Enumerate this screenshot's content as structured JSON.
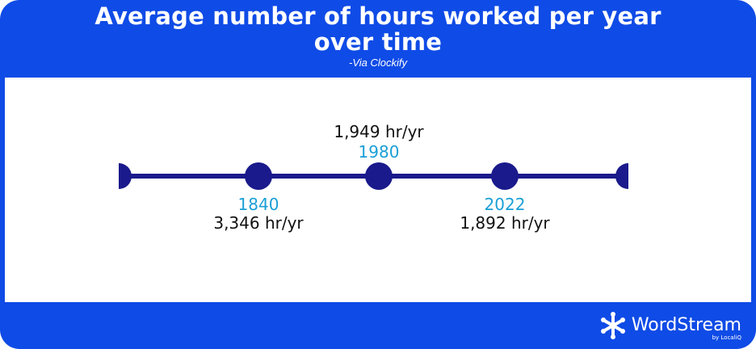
{
  "header": {
    "title_line1": "Average number of hours worked per year",
    "title_line2": "over time",
    "source": "-Via Clockify"
  },
  "timeline": {
    "points": [
      {
        "year": "1840",
        "hours": "3,346 hr/yr",
        "label_position": "below"
      },
      {
        "year": "1980",
        "hours": "1,949 hr/yr",
        "label_position": "above"
      },
      {
        "year": "2022",
        "hours": "1,892 hr/yr",
        "label_position": "below"
      }
    ]
  },
  "brand": {
    "name": "WordStream",
    "sub": "by LocaliQ",
    "icon": "snowflake-logo-icon"
  },
  "colors": {
    "frame": "#0f4be6",
    "timeline": "#1a1a8c",
    "year": "#1a9fd6",
    "hours": "#111111",
    "panel": "#ffffff"
  }
}
